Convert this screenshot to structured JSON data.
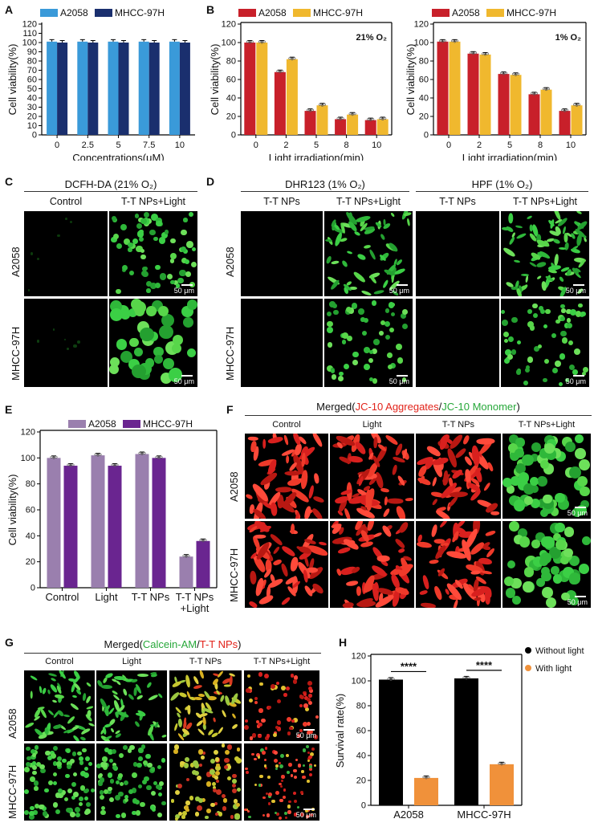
{
  "panels": {
    "A": {
      "label": "A"
    },
    "B": {
      "label": "B"
    },
    "C": {
      "label": "C",
      "title": "DCFH-DA (21% O₂)",
      "cols": [
        "Control",
        "T-T NPs+Light"
      ],
      "rows": [
        "A2058",
        "MHCC-97H"
      ],
      "scale": "50 μm"
    },
    "D": {
      "label": "D",
      "title_left": "DHR123 (1% O₂)",
      "title_right": "HPF (1% O₂)",
      "cols": [
        "T-T NPs",
        "T-T NPs+Light",
        "T-T NPs",
        "T-T NPs+Light"
      ],
      "rows": [
        "A2058",
        "MHCC-97H"
      ],
      "scale": "50 μm"
    },
    "E": {
      "label": "E"
    },
    "F": {
      "label": "F",
      "title_prefix": "Merged(",
      "title_red": "JC-10 Aggregates",
      "title_sep": "/",
      "title_green": "JC-10 Monomer",
      "title_suffix": ")",
      "cols": [
        "Control",
        "Light",
        "T-T NPs",
        "T-T NPs+Light"
      ],
      "rows": [
        "A2058",
        "MHCC-97H"
      ],
      "scale": "50 μm"
    },
    "G": {
      "label": "G",
      "title_prefix": "Merged(",
      "title_green": "Calcein-AM",
      "title_sep": "/",
      "title_red": "T-T NPs",
      "title_suffix": ")",
      "cols": [
        "Control",
        "Light",
        "T-T NPs",
        "T-T NPs+Light"
      ],
      "rows": [
        "A2058",
        "MHCC-97H"
      ],
      "scale": "50 μm"
    },
    "H": {
      "label": "H"
    }
  },
  "colors": {
    "lightblue": "#3a9ad9",
    "navy": "#1a2f6e",
    "red": "#c8202a",
    "yellow": "#f0b82e",
    "purple_light": "#9a7fae",
    "purple_dark": "#6a2590",
    "black": "#000000",
    "orange": "#f0913a",
    "green": "#3ec53e",
    "cellred": "#e2231a"
  },
  "chart_data": [
    {
      "id": "A",
      "type": "bar",
      "categories": [
        "0",
        "2.5",
        "5",
        "7.5",
        "10"
      ],
      "series": [
        {
          "name": "A2058",
          "values": [
            101,
            101,
            101,
            101,
            101
          ]
        },
        {
          "name": "MHCC-97H",
          "values": [
            100,
            100,
            100,
            100,
            100
          ]
        }
      ],
      "xlabel": "Concentrations(μM)",
      "ylabel": "Cell viability(%)",
      "ylim": [
        0,
        120
      ],
      "yticks": [
        0,
        10,
        20,
        30,
        40,
        50,
        60,
        70,
        80,
        90,
        100,
        110,
        120
      ],
      "legend": "top"
    },
    {
      "id": "B1",
      "type": "bar",
      "categories": [
        "0",
        "2",
        "5",
        "8",
        "10"
      ],
      "series": [
        {
          "name": "A2058",
          "values": [
            100,
            68,
            26,
            17,
            16
          ]
        },
        {
          "name": "MHCC-97H",
          "values": [
            100,
            82,
            32,
            22,
            17
          ]
        }
      ],
      "annotation": "21% O₂",
      "xlabel": "Light irradiation(min)",
      "ylabel": "Cell viability(%)",
      "ylim": [
        0,
        120
      ],
      "yticks": [
        0,
        20,
        40,
        60,
        80,
        100,
        120
      ],
      "legend": "top"
    },
    {
      "id": "B2",
      "type": "bar",
      "categories": [
        "0",
        "2",
        "5",
        "8",
        "10"
      ],
      "series": [
        {
          "name": "A2058",
          "values": [
            101,
            88,
            66,
            44,
            26
          ]
        },
        {
          "name": "MHCC-97H",
          "values": [
            101,
            87,
            65,
            49,
            32
          ]
        }
      ],
      "annotation": "1% O₂",
      "xlabel": "Light irradiation(min)",
      "ylabel": "Cell viability(%)",
      "ylim": [
        0,
        120
      ],
      "yticks": [
        0,
        20,
        40,
        60,
        80,
        100,
        120
      ],
      "legend": "top"
    },
    {
      "id": "E",
      "type": "bar",
      "categories": [
        "Control",
        "Light",
        "T-T NPs",
        "T-T NPs\n+Light"
      ],
      "series": [
        {
          "name": "A2058",
          "values": [
            100,
            102,
            103,
            24
          ]
        },
        {
          "name": "MHCC-97H",
          "values": [
            94,
            94,
            100,
            36
          ]
        }
      ],
      "xlabel": "",
      "ylabel": "Cell viability(%)",
      "ylim": [
        0,
        120
      ],
      "yticks": [
        0,
        20,
        40,
        60,
        80,
        100,
        120
      ],
      "legend": "top"
    },
    {
      "id": "H",
      "type": "bar",
      "categories": [
        "A2058",
        "MHCC-97H"
      ],
      "series": [
        {
          "name": "Without light",
          "values": [
            101,
            102
          ]
        },
        {
          "name": "With light",
          "values": [
            22,
            33
          ]
        }
      ],
      "significance": [
        "****",
        "****"
      ],
      "xlabel": "",
      "ylabel": "Survival rate(%)",
      "ylim": [
        0,
        120
      ],
      "yticks": [
        0,
        20,
        40,
        60,
        80,
        100,
        120
      ],
      "legend": "top-right"
    }
  ]
}
